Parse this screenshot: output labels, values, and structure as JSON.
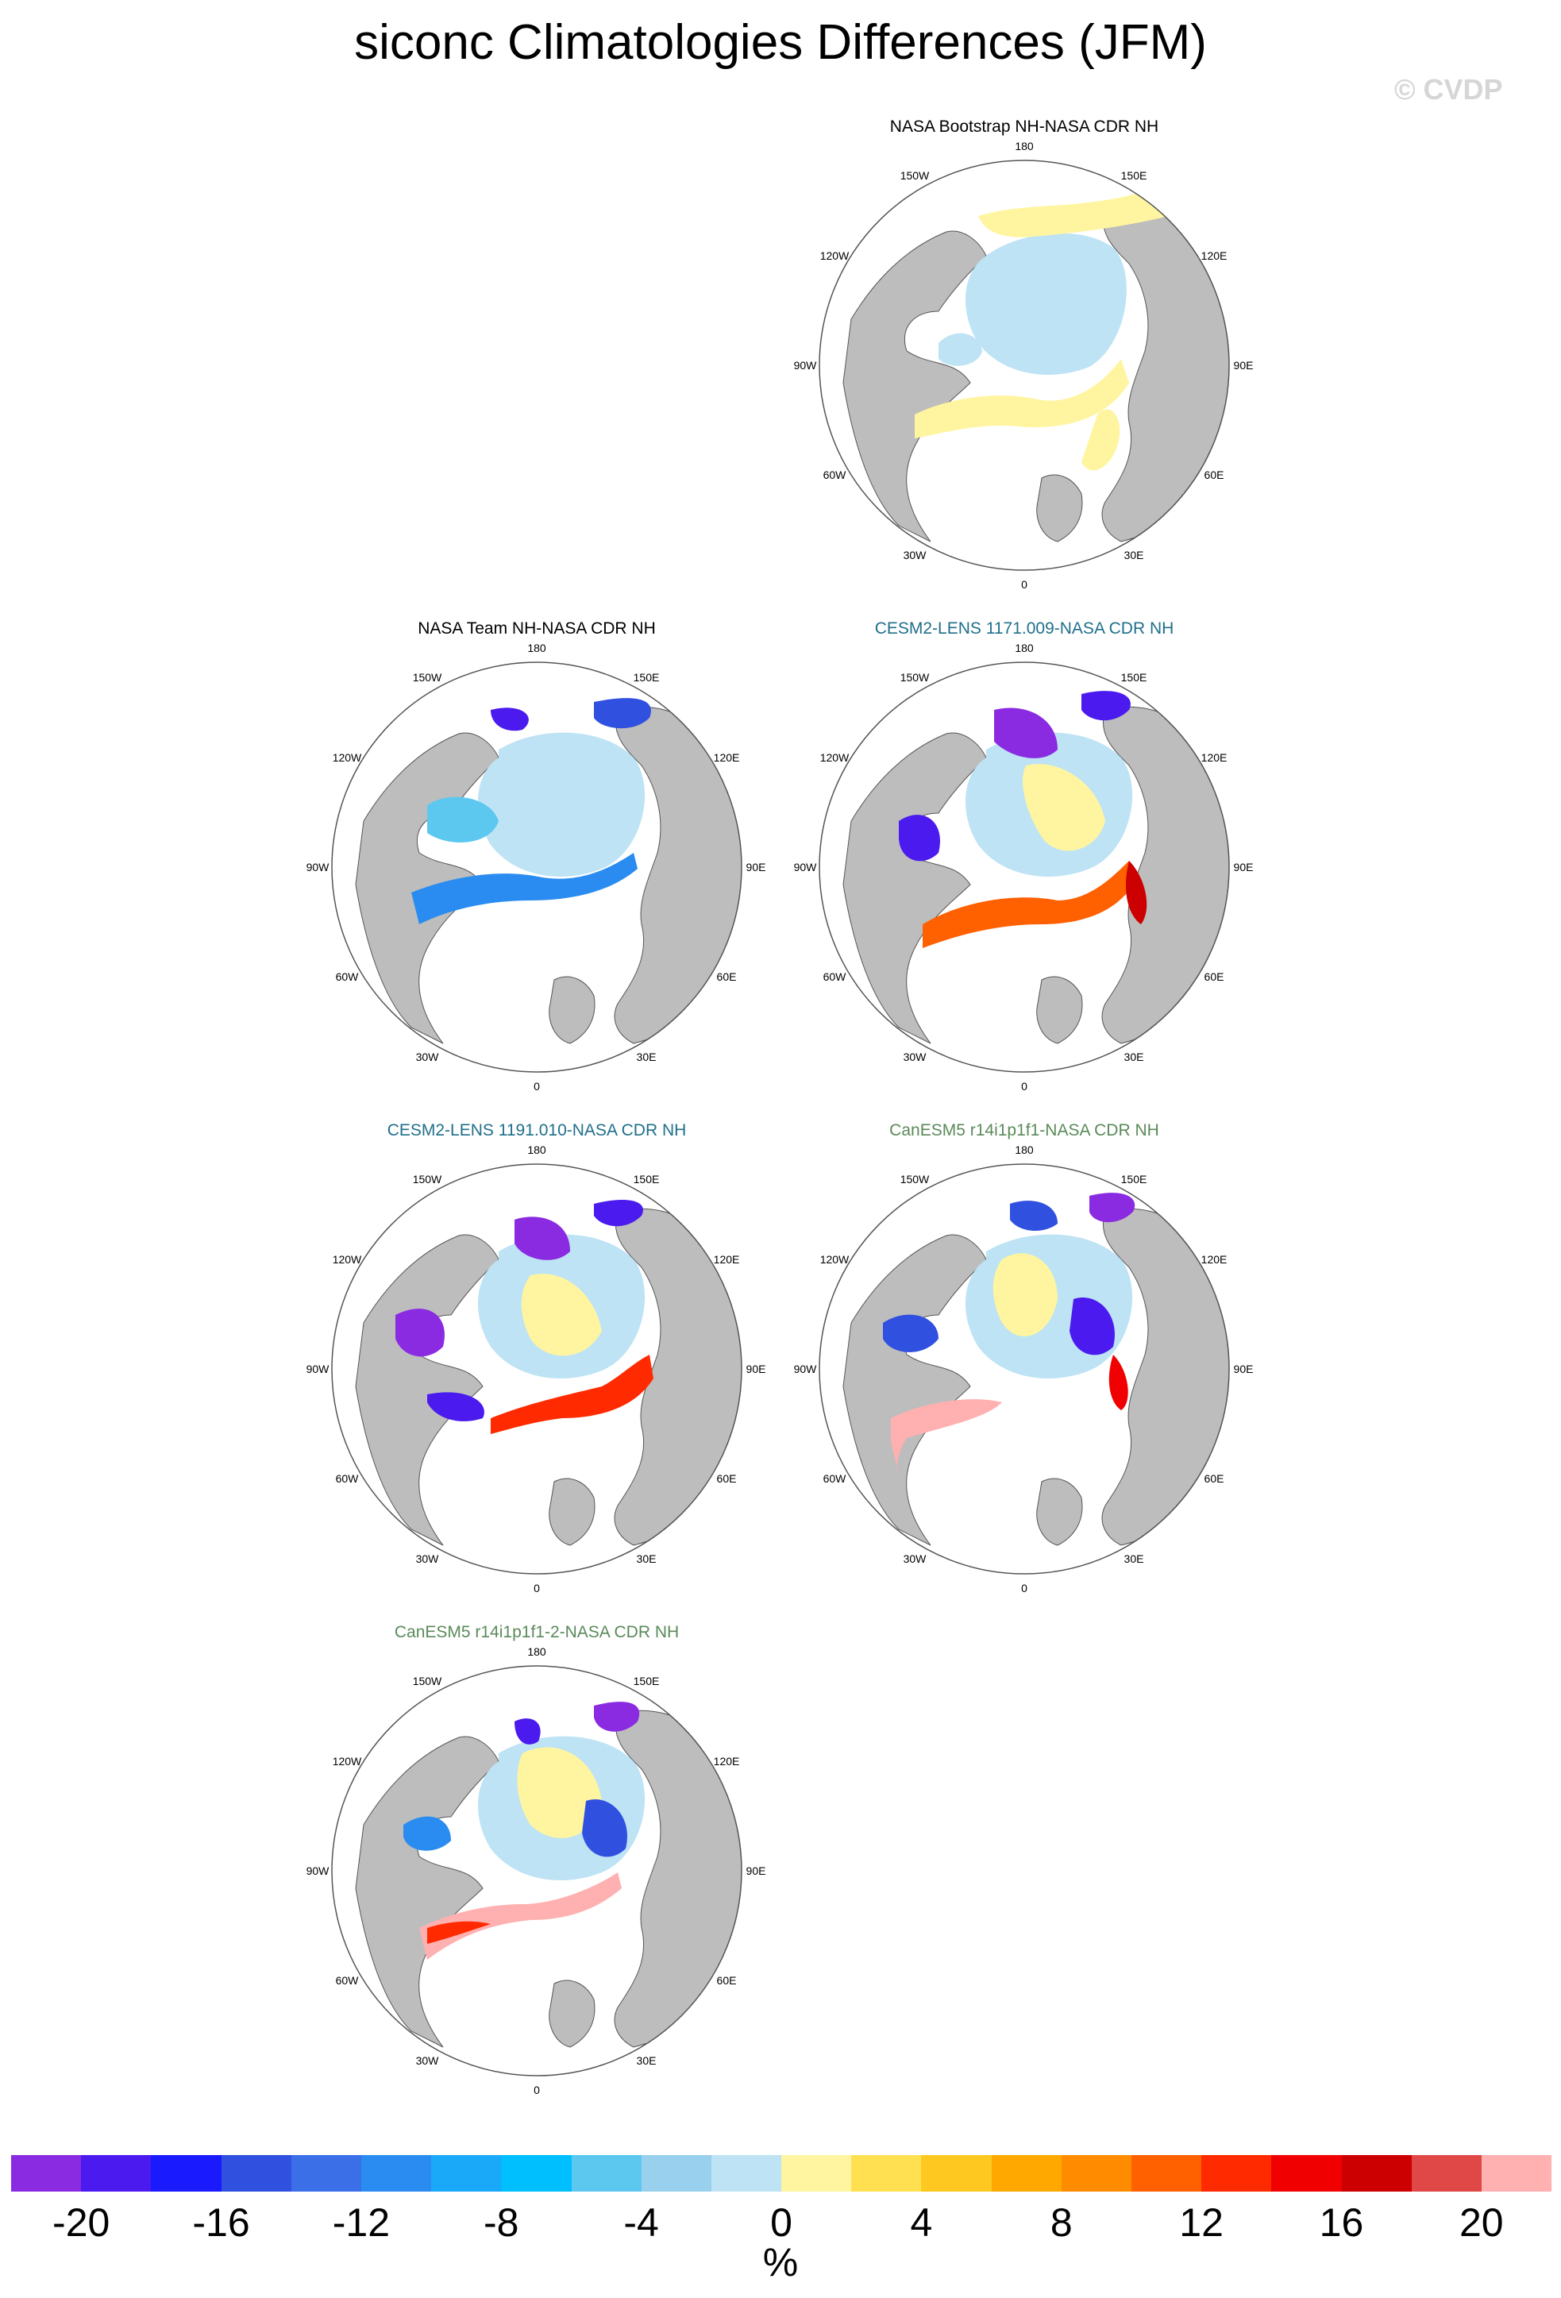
{
  "title": "siconc Climatologies Differences (JFM)",
  "watermark": "© CVDP",
  "panels": [
    {
      "title": "NASA Bootstrap NH-NASA CDR NH",
      "title_color": "#000000",
      "style": "bootstrap"
    },
    {
      "title": "NASA Team NH-NASA CDR NH",
      "title_color": "#000000",
      "style": "team"
    },
    {
      "title": "CESM2-LENS 1171.009-NASA CDR NH",
      "title_color": "#1f6f8b",
      "style": "cesm1"
    },
    {
      "title": "CESM2-LENS 1191.010-NASA CDR NH",
      "title_color": "#1f6f8b",
      "style": "cesm2"
    },
    {
      "title": "CanESM5 r14i1p1f1-NASA CDR NH",
      "title_color": "#5a8a5a",
      "style": "can1"
    },
    {
      "title": "CanESM5 r14i1p1f1-2-NASA CDR NH",
      "title_color": "#5a8a5a",
      "style": "can2"
    }
  ],
  "lon_labels": {
    "top": "180",
    "bottom": "0",
    "left": [
      "150W",
      "120W",
      "90W",
      "60W",
      "30W"
    ],
    "right": [
      "150E",
      "120E",
      "90E",
      "60E",
      "30E"
    ]
  },
  "colorbar": {
    "unit": "%",
    "tick_labels": [
      "-20",
      "-16",
      "-12",
      "-8",
      "-4",
      "0",
      "4",
      "8",
      "12",
      "16",
      "20"
    ],
    "colors": [
      "#8a2be2",
      "#4a1aef",
      "#1a1aff",
      "#3050e0",
      "#3a6fe8",
      "#2a8cf0",
      "#1aa8f8",
      "#00bfff",
      "#5cc8f0",
      "#98d0ee",
      "#bde3f5",
      "#fff5a0",
      "#ffe050",
      "#ffc820",
      "#ffa800",
      "#ff8c00",
      "#ff6000",
      "#ff2a00",
      "#f00000",
      "#cc0000",
      "#e04848",
      "#ffb0b0"
    ]
  },
  "map_colors": {
    "land": "#bdbdbd",
    "ocean": "#ffffff"
  }
}
